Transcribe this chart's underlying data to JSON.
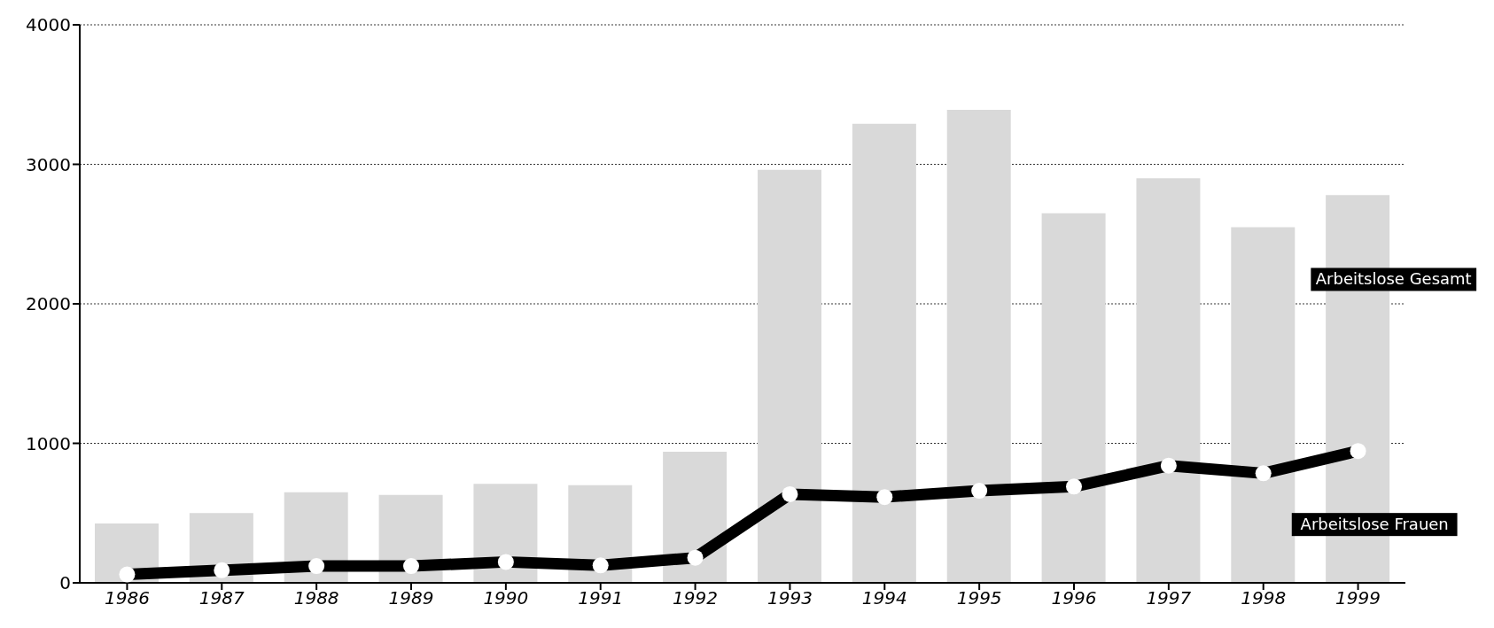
{
  "chart_data": {
    "type": "bar",
    "categories": [
      "1986",
      "1987",
      "1988",
      "1989",
      "1990",
      "1991",
      "1992",
      "1993",
      "1994",
      "1995",
      "1996",
      "1997",
      "1998",
      "1999"
    ],
    "series": [
      {
        "name": "Arbeitslose Gesamt",
        "color": "#d9d9d9",
        "values": [
          425,
          500,
          650,
          630,
          710,
          700,
          940,
          2960,
          3290,
          3390,
          2650,
          2900,
          2550,
          2780
        ]
      },
      {
        "name": "Arbeitslose Frauen",
        "type": "line",
        "color": "#000000",
        "marker": "circle",
        "values": [
          60,
          90,
          120,
          120,
          150,
          125,
          180,
          635,
          615,
          660,
          690,
          840,
          785,
          945
        ]
      }
    ],
    "ylim": [
      0,
      4000
    ],
    "yticks": [
      0,
      1000,
      2000,
      3000,
      4000
    ],
    "grid": "y"
  }
}
